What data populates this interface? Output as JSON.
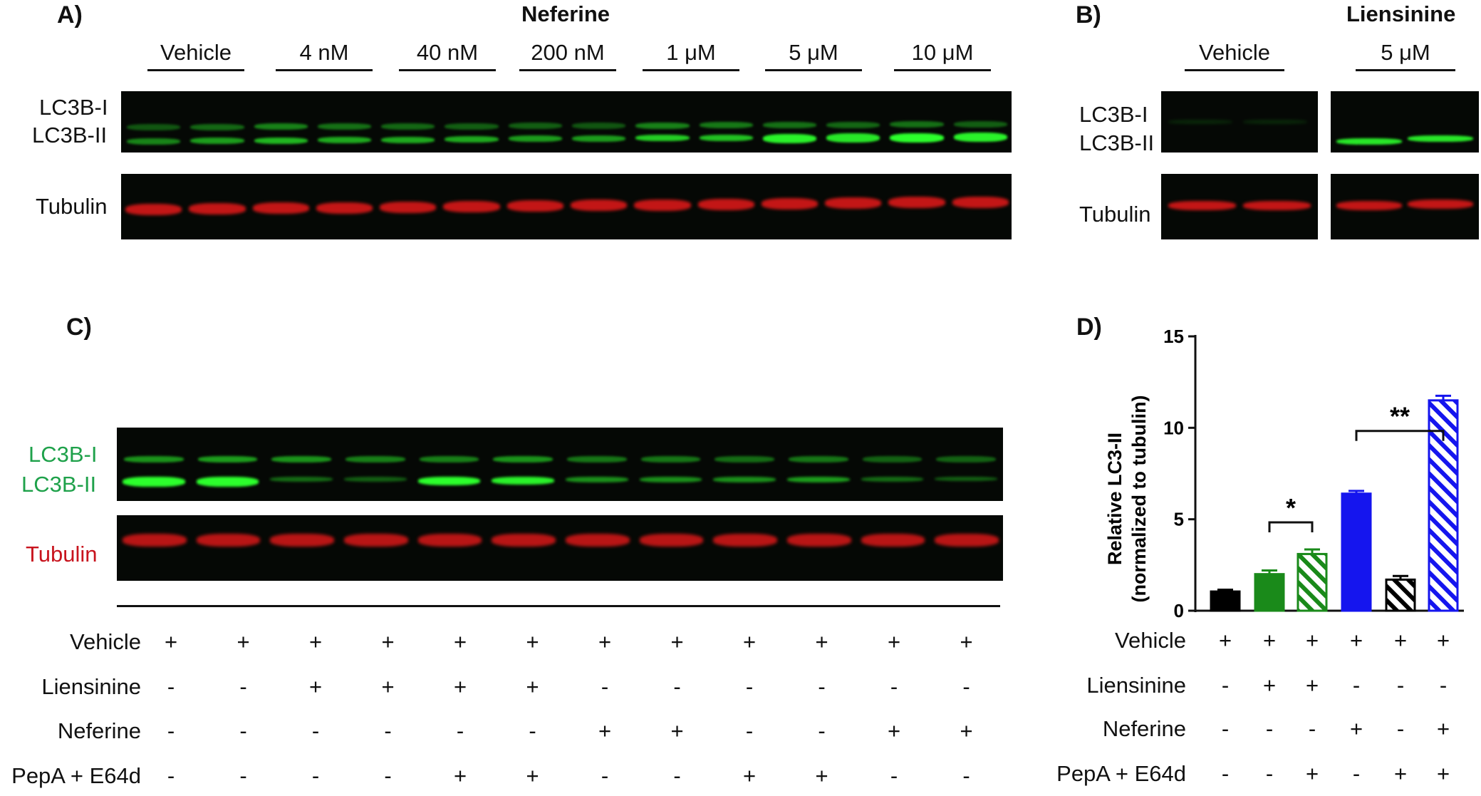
{
  "panelA": {
    "label": "A)",
    "title": "Neferine",
    "conditions": [
      "Vehicle",
      "4 nM",
      "40 nM",
      "200 nM",
      "1 μM",
      "5 μM",
      "10 μM"
    ],
    "band_labels": {
      "lc3b1": "LC3B-I",
      "lc3b2": "LC3B-II",
      "tubulin": "Tubulin"
    }
  },
  "panelB": {
    "label": "B)",
    "title": "Liensinine",
    "conditions": [
      "Vehicle",
      "5 μM"
    ],
    "band_labels": {
      "lc3b1": "LC3B-I",
      "lc3b2": "LC3B-II",
      "tubulin": "Tubulin"
    }
  },
  "panelC": {
    "label": "C)",
    "band_labels": {
      "lc3b1": "LC3B-I",
      "lc3b2": "LC3B-II",
      "tubulin": "Tubulin"
    },
    "rows": [
      {
        "label": "Vehicle",
        "signs": [
          "+",
          "+",
          "+",
          "+",
          "+",
          "+",
          "+",
          "+",
          "+",
          "+",
          "+",
          "+"
        ]
      },
      {
        "label": "Liensinine",
        "signs": [
          "-",
          "-",
          "+",
          "+",
          "+",
          "+",
          "-",
          "-",
          "-",
          "-",
          "-",
          "-"
        ]
      },
      {
        "label": "Neferine",
        "signs": [
          "-",
          "-",
          "-",
          "-",
          "-",
          "-",
          "+",
          "+",
          "-",
          "-",
          "+",
          "+"
        ]
      },
      {
        "label": "PepA + E64d",
        "signs": [
          "-",
          "-",
          "-",
          "-",
          "+",
          "+",
          "-",
          "-",
          "+",
          "+",
          "-",
          "-"
        ]
      }
    ]
  },
  "panelD": {
    "label": "D)",
    "rows": [
      {
        "label": "Vehicle",
        "signs": [
          "+",
          "+",
          "+",
          "+",
          "+",
          "+"
        ]
      },
      {
        "label": "Liensinine",
        "signs": [
          "-",
          "+",
          "+",
          "-",
          "-",
          "-"
        ]
      },
      {
        "label": "Neferine",
        "signs": [
          "-",
          "-",
          "-",
          "+",
          "-",
          "+"
        ]
      },
      {
        "label": "PepA + E64d",
        "signs": [
          "-",
          "-",
          "+",
          "-",
          "+",
          "+"
        ]
      }
    ]
  },
  "chart_data": {
    "type": "bar",
    "ylabel_line1": "Relative LC3-II",
    "ylabel_line2": "(normalized to tubulin)",
    "ylim": [
      0,
      15
    ],
    "yticks": [
      0,
      5,
      10,
      15
    ],
    "bars": [
      {
        "value": 1.05,
        "error": 0.1,
        "color": "#000000",
        "hatched": false
      },
      {
        "value": 2.0,
        "error": 0.2,
        "color": "#1a8a1a",
        "hatched": false
      },
      {
        "value": 3.1,
        "error": 0.25,
        "color": "#1a8a1a",
        "hatched": true
      },
      {
        "value": 6.4,
        "error": 0.15,
        "color": "#1515ee",
        "hatched": false
      },
      {
        "value": 1.7,
        "error": 0.2,
        "color": "#000000",
        "hatched": true
      },
      {
        "value": 11.5,
        "error": 0.25,
        "color": "#1515ee",
        "hatched": true
      }
    ],
    "significance": [
      {
        "from": 1,
        "to": 2,
        "label": "*"
      },
      {
        "from": 3,
        "to": 5,
        "label": "**"
      }
    ]
  },
  "colors": {
    "green_text": "#1ea14a",
    "red_text": "#c8141e",
    "green_band": "#2cff2c",
    "red_band": "#d81818"
  }
}
